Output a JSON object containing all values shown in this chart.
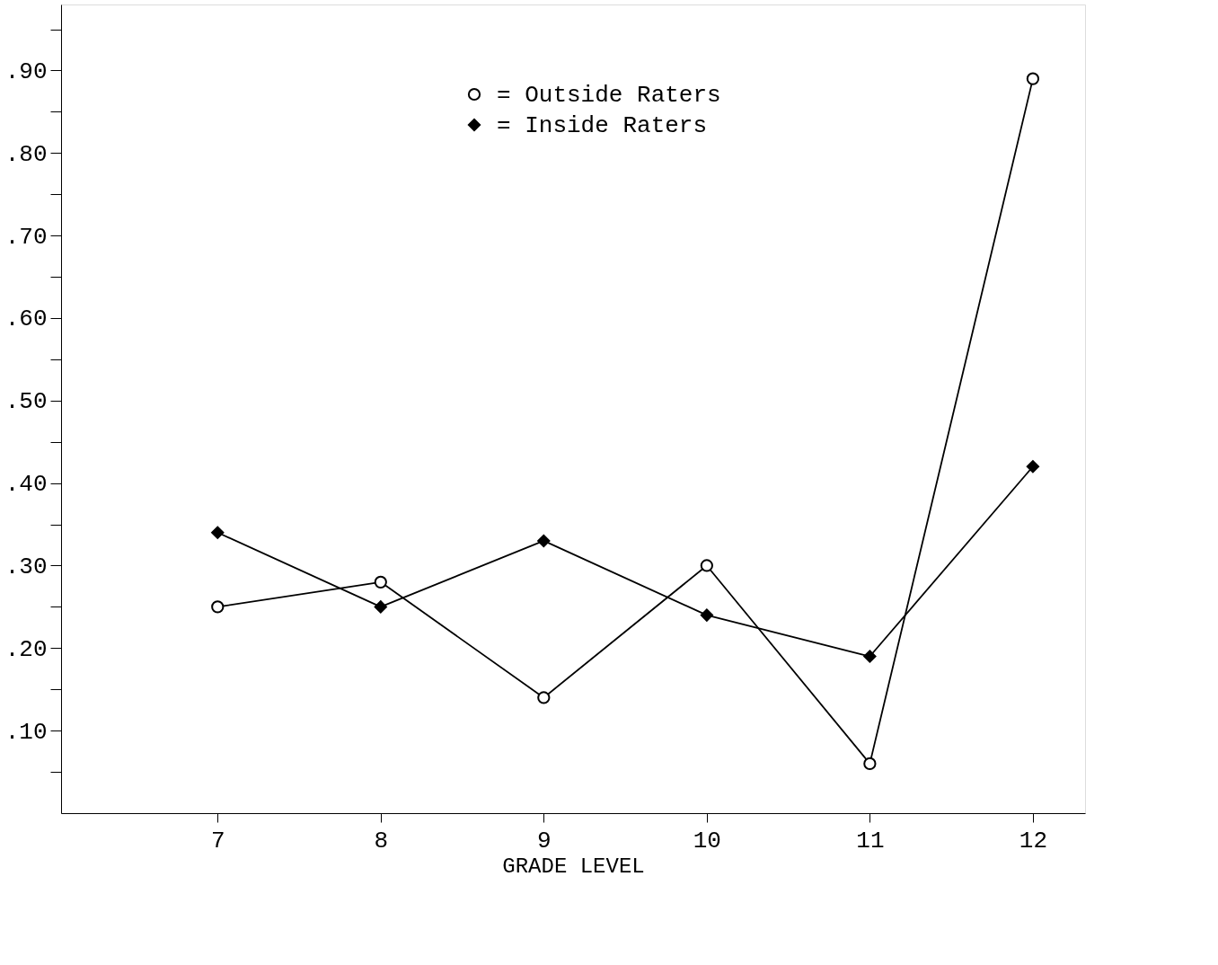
{
  "chart_data": {
    "type": "line",
    "xlabel": "GRADE LEVEL",
    "x": [
      7,
      8,
      9,
      10,
      11,
      12
    ],
    "series": [
      {
        "name": "= Outside Raters",
        "color": "#000000",
        "marker": "circle",
        "values": [
          0.25,
          0.28,
          0.14,
          0.3,
          0.06,
          0.89
        ]
      },
      {
        "name": "= Inside Raters",
        "color": "#000000",
        "marker": "diamond",
        "values": [
          0.34,
          0.25,
          0.33,
          0.24,
          0.19,
          0.42
        ]
      }
    ],
    "xlim": [
      6.04,
      12.32
    ],
    "xticks": [
      7,
      8,
      9,
      10,
      11,
      12
    ],
    "ylim": [
      0,
      0.98
    ],
    "yticks": [
      {
        "value": 0.05,
        "label": null
      },
      {
        "value": 0.1,
        "label": ".10"
      },
      {
        "value": 0.15,
        "label": null
      },
      {
        "value": 0.2,
        "label": ".20"
      },
      {
        "value": 0.25,
        "label": null
      },
      {
        "value": 0.3,
        "label": ".30"
      },
      {
        "value": 0.35,
        "label": null
      },
      {
        "value": 0.4,
        "label": ".40"
      },
      {
        "value": 0.45,
        "label": null
      },
      {
        "value": 0.5,
        "label": ".50"
      },
      {
        "value": 0.55,
        "label": null
      },
      {
        "value": 0.6,
        "label": ".60"
      },
      {
        "value": 0.65,
        "label": null
      },
      {
        "value": 0.7,
        "label": ".70"
      },
      {
        "value": 0.75,
        "label": null
      },
      {
        "value": 0.8,
        "label": ".80"
      },
      {
        "value": 0.85,
        "label": null
      },
      {
        "value": 0.9,
        "label": ".90"
      },
      {
        "value": 0.95,
        "label": null
      }
    ],
    "grid": false,
    "legend": "top",
    "line_style": "solid"
  }
}
